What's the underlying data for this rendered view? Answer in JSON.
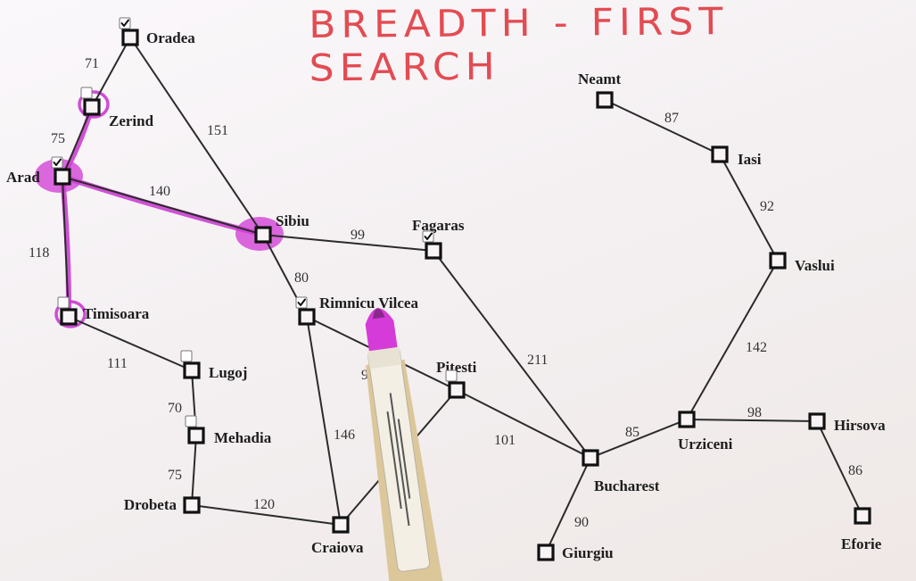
{
  "title": "BREADTH - FIRST SEARCH",
  "colors": {
    "title": "#e24c52",
    "highlight": "#c93bcf",
    "edge": "#2b2b2b",
    "node": "#111111"
  },
  "nodes": [
    {
      "id": "oradea",
      "label": "Oradea",
      "checkbox": "checked"
    },
    {
      "id": "zerind",
      "label": "Zerind",
      "checkbox": "empty",
      "highlight": "ring"
    },
    {
      "id": "arad",
      "label": "Arad",
      "checkbox": "checked",
      "highlight": "blob"
    },
    {
      "id": "sibiu",
      "label": "Sibiu",
      "highlight": "blob"
    },
    {
      "id": "timisoara",
      "label": "Timisoara",
      "checkbox": "empty",
      "highlight": "ring"
    },
    {
      "id": "lugoj",
      "label": "Lugoj",
      "checkbox": "empty"
    },
    {
      "id": "mehadia",
      "label": "Mehadia",
      "checkbox": "empty"
    },
    {
      "id": "drobeta",
      "label": "Drobeta"
    },
    {
      "id": "craiova",
      "label": "Craiova"
    },
    {
      "id": "rimnicu",
      "label": "Rimnicu Vilcea",
      "checkbox": "checked"
    },
    {
      "id": "fagaras",
      "label": "Fagaras",
      "checkbox": "checked"
    },
    {
      "id": "pitesti",
      "label": "Pitesti",
      "checkbox": "empty"
    },
    {
      "id": "bucharest",
      "label": "Bucharest"
    },
    {
      "id": "giurgiu",
      "label": "Giurgiu"
    },
    {
      "id": "urziceni",
      "label": "Urziceni"
    },
    {
      "id": "hirsova",
      "label": "Hirsova"
    },
    {
      "id": "eforie",
      "label": "Eforie"
    },
    {
      "id": "vaslui",
      "label": "Vaslui"
    },
    {
      "id": "iasi",
      "label": "Iasi"
    },
    {
      "id": "neamt",
      "label": "Neamt"
    }
  ],
  "edges": [
    {
      "from": "oradea",
      "to": "zerind",
      "cost": "71"
    },
    {
      "from": "oradea",
      "to": "sibiu",
      "cost": "151"
    },
    {
      "from": "zerind",
      "to": "arad",
      "cost": "75",
      "highlight": true
    },
    {
      "from": "arad",
      "to": "sibiu",
      "cost": "140",
      "highlight": true
    },
    {
      "from": "arad",
      "to": "timisoara",
      "cost": "118",
      "highlight": true
    },
    {
      "from": "timisoara",
      "to": "lugoj",
      "cost": "111"
    },
    {
      "from": "lugoj",
      "to": "mehadia",
      "cost": "70"
    },
    {
      "from": "mehadia",
      "to": "drobeta",
      "cost": "75"
    },
    {
      "from": "drobeta",
      "to": "craiova",
      "cost": "120"
    },
    {
      "from": "sibiu",
      "to": "fagaras",
      "cost": "99"
    },
    {
      "from": "sibiu",
      "to": "rimnicu",
      "cost": "80"
    },
    {
      "from": "rimnicu",
      "to": "craiova",
      "cost": "146"
    },
    {
      "from": "rimnicu",
      "to": "pitesti",
      "cost": "9"
    },
    {
      "from": "craiova",
      "to": "pitesti",
      "cost": ""
    },
    {
      "from": "pitesti",
      "to": "bucharest",
      "cost": "101"
    },
    {
      "from": "fagaras",
      "to": "bucharest",
      "cost": "211"
    },
    {
      "from": "bucharest",
      "to": "giurgiu",
      "cost": "90"
    },
    {
      "from": "bucharest",
      "to": "urziceni",
      "cost": "85"
    },
    {
      "from": "urziceni",
      "to": "hirsova",
      "cost": "98"
    },
    {
      "from": "hirsova",
      "to": "eforie",
      "cost": "86"
    },
    {
      "from": "urziceni",
      "to": "vaslui",
      "cost": "142"
    },
    {
      "from": "vaslui",
      "to": "iasi",
      "cost": "92"
    },
    {
      "from": "iasi",
      "to": "neamt",
      "cost": "87"
    }
  ]
}
